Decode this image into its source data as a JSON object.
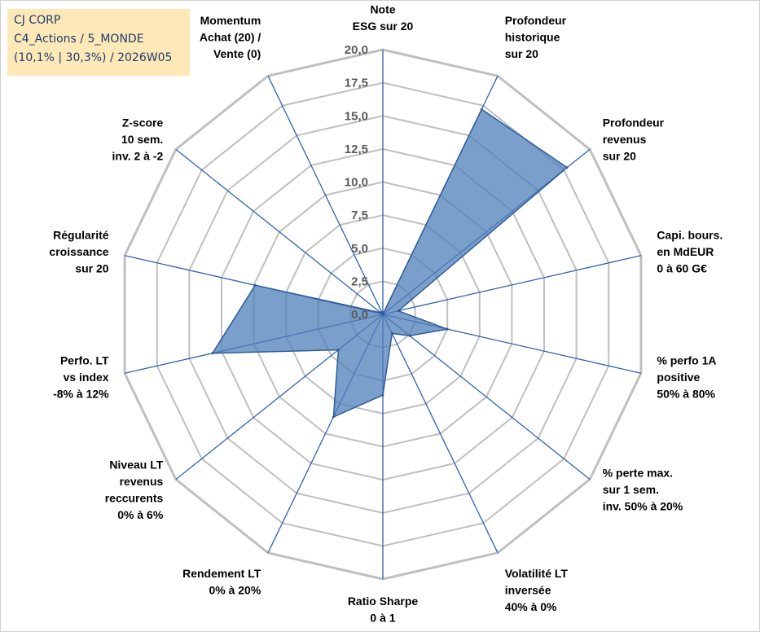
{
  "info": {
    "company": "CJ CORP",
    "portfolio": "C4_Actions / 5_MONDE",
    "stats": "(10,1% | 30,3%) / 2026W05"
  },
  "colors": {
    "fill": "#4f7fba",
    "stroke": "#2e5d99",
    "grid": "#bfbfbf",
    "spokes": "#2f62b1",
    "info_bg": "#fde9b8",
    "info_text": "#1f3a6b"
  },
  "chart_data": {
    "type": "radar",
    "title": "",
    "rmin": 0,
    "rmax": 20,
    "ticks": [
      "0,0",
      "2,5",
      "5,0",
      "7,5",
      "10,0",
      "12,5",
      "15,0",
      "17,5",
      "20,0"
    ],
    "axes": [
      [
        "Note",
        "ESG sur 20"
      ],
      [
        "Profondeur",
        "historique",
        "sur 20"
      ],
      [
        "Profondeur",
        "revenus",
        "sur 20"
      ],
      [
        "Capi. bours.",
        "en MdEUR",
        "0 à 60 G€"
      ],
      [
        "% perfo 1A",
        "positive",
        "50% à 80%"
      ],
      [
        "% perte max.",
        "sur 1 sem.",
        "inv. 50% à 20%"
      ],
      [
        "Volatilité LT",
        "inversée",
        "40% à 0%"
      ],
      [
        "Ratio Sharpe",
        "0 à 1"
      ],
      [
        "Rendement LT",
        "0% à 20%"
      ],
      [
        "Niveau LT",
        "revenus",
        "reccurents",
        "0% à 6%"
      ],
      [
        "Perfo. LT",
        "vs index",
        "-8% à 12%"
      ],
      [
        "Régularité",
        "croissance",
        "sur 20"
      ],
      [
        "Z-score",
        "10 sem.",
        "inv. 2 à -2"
      ],
      [
        "Momentum",
        "Achat (20) /",
        "Vente (0)"
      ]
    ],
    "series": [
      {
        "name": "CJ CORP",
        "values": [
          0.0,
          17.2,
          17.8,
          1.2,
          5.0,
          2.6,
          1.6,
          6.1,
          8.6,
          4.3,
          13.2,
          9.9,
          0.2,
          0.2
        ]
      }
    ]
  }
}
